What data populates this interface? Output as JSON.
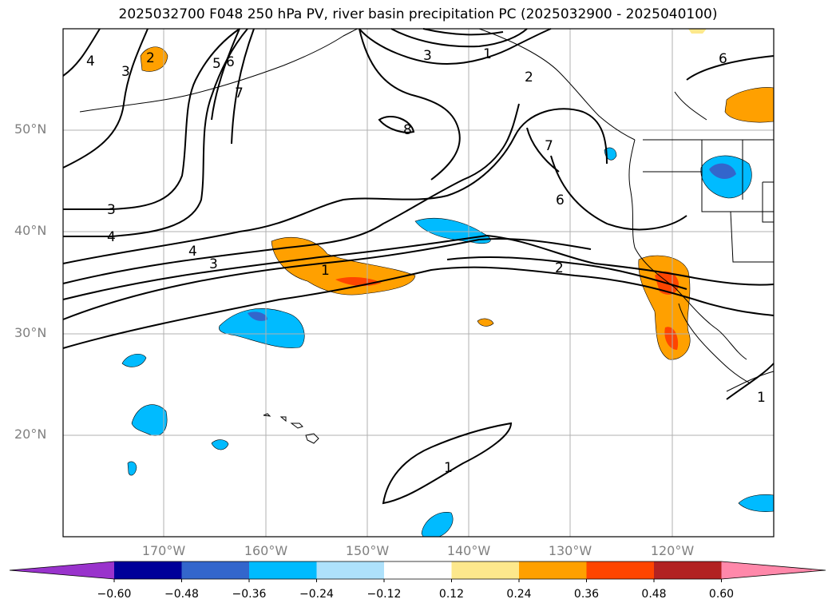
{
  "title": "2025032700 F048 250 hPa PV, river basin precipitation PC (2025032900 - 2025040100)",
  "map": {
    "lat_labels": [
      "50°N",
      "40°N",
      "30°N",
      "20°N"
    ],
    "lon_labels": [
      "170°W",
      "160°W",
      "150°W",
      "140°W",
      "130°W",
      "120°W"
    ],
    "gridlines": true
  },
  "contour_labels": [
    "4",
    "3",
    "2",
    "5",
    "6",
    "7",
    "8",
    "3",
    "1",
    "2",
    "6",
    "7",
    "6",
    "3",
    "4",
    "4",
    "3",
    "1",
    "2",
    "1",
    "1"
  ],
  "colorbar": {
    "ticks": [
      "−0.60",
      "−0.48",
      "−0.36",
      "−0.24",
      "−0.12",
      "0.12",
      "0.24",
      "0.36",
      "0.48",
      "0.60"
    ],
    "colors": [
      "#9933cc",
      "#000099",
      "#3366cc",
      "#00bbff",
      "#aee1fb",
      "#ffffff",
      "#fde88c",
      "#ffa000",
      "#ff4500",
      "#b22222",
      "#ff88aa"
    ]
  }
}
